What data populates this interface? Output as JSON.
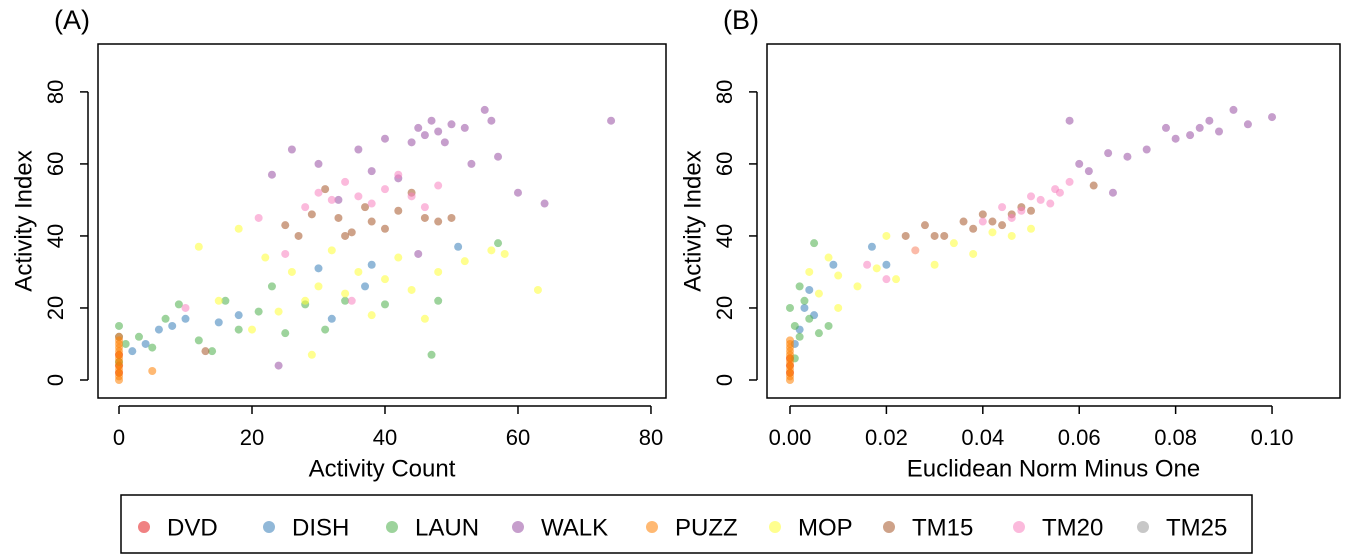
{
  "chart_data": [
    {
      "type": "scatter",
      "title": "(A)",
      "x_label": "Activity Count",
      "y_label": "Activity Index",
      "xlim": [
        -3.16,
        82.26
      ],
      "ylim": [
        -5,
        93.3
      ],
      "xticks": [
        0,
        20,
        40,
        60,
        80
      ],
      "yticks": [
        0,
        20,
        40,
        60,
        80
      ],
      "series": [
        {
          "name": "DVD",
          "color": "#e41a1c",
          "x": [
            0,
            0,
            0
          ],
          "values": [
            2,
            4,
            7
          ]
        },
        {
          "name": "DISH",
          "color": "#377eb8",
          "x": [
            0,
            2,
            4,
            6,
            8,
            10,
            15,
            18,
            30,
            32,
            38,
            51,
            37
          ],
          "values": [
            12,
            8,
            10,
            14,
            15,
            17,
            16,
            18,
            31,
            17,
            32,
            37,
            26
          ]
        },
        {
          "name": "LAUN",
          "color": "#4daf4a",
          "x": [
            0,
            1,
            3,
            5,
            7,
            9,
            12,
            14,
            16,
            18,
            21,
            23,
            25,
            28,
            31,
            34,
            40,
            47,
            48,
            57,
            0
          ],
          "values": [
            15,
            10,
            12,
            9,
            17,
            21,
            11,
            8,
            22,
            14,
            19,
            26,
            13,
            21,
            14,
            22,
            21,
            7,
            22,
            38,
            5
          ]
        },
        {
          "name": "WALK",
          "color": "#984ea3",
          "x": [
            23,
            26,
            30,
            33,
            36,
            38,
            40,
            42,
            44,
            45,
            46,
            47,
            48,
            49,
            50,
            52,
            53,
            55,
            56,
            57,
            60,
            64,
            74,
            45,
            24
          ],
          "values": [
            57,
            64,
            60,
            50,
            64,
            58,
            67,
            56,
            66,
            70,
            68,
            72,
            69,
            66,
            71,
            70,
            60,
            75,
            72,
            62,
            52,
            49,
            72,
            35,
            4
          ]
        },
        {
          "name": "PUZZ",
          "color": "#ff7f00",
          "x": [
            0,
            0,
            0,
            0,
            0,
            0,
            0,
            0,
            0,
            0,
            0,
            0,
            0,
            5
          ],
          "values": [
            0,
            1,
            2,
            3,
            4,
            5,
            6,
            7,
            8,
            9,
            10,
            11,
            12,
            2.5
          ]
        },
        {
          "name": "MOP",
          "color": "#ffff33",
          "x": [
            12,
            18,
            22,
            24,
            26,
            28,
            30,
            32,
            34,
            36,
            38,
            40,
            42,
            44,
            46,
            48,
            52,
            56,
            58,
            63,
            29,
            20,
            15
          ],
          "values": [
            37,
            42,
            34,
            19,
            30,
            22,
            26,
            36,
            24,
            30,
            18,
            28,
            34,
            25,
            17,
            30,
            33,
            36,
            35,
            25,
            7,
            14,
            22
          ]
        },
        {
          "name": "TM15",
          "color": "#a65628",
          "x": [
            25,
            27,
            29,
            31,
            33,
            35,
            37,
            38,
            40,
            42,
            44,
            46,
            48,
            50,
            34,
            13
          ],
          "values": [
            43,
            40,
            46,
            53,
            45,
            41,
            48,
            44,
            42,
            47,
            52,
            45,
            44,
            45,
            40,
            8
          ]
        },
        {
          "name": "TM20",
          "color": "#f781bf",
          "x": [
            21,
            25,
            28,
            30,
            32,
            34,
            36,
            38,
            40,
            42,
            44,
            46,
            48,
            35,
            10
          ],
          "values": [
            45,
            35,
            48,
            52,
            50,
            55,
            51,
            49,
            53,
            57,
            51,
            48,
            54,
            22,
            20
          ]
        },
        {
          "name": "TM25",
          "color": "#999999",
          "x": [],
          "values": []
        }
      ]
    },
    {
      "type": "scatter",
      "title": "(B)",
      "x_label": "Euclidean Norm Minus One",
      "y_label": "Activity Index",
      "xlim": [
        -0.00477,
        0.1141
      ],
      "ylim": [
        -5,
        93.3
      ],
      "xticks": [
        {
          "value": 0,
          "label": "0.00"
        },
        {
          "value": 0.02,
          "label": "0.02"
        },
        {
          "value": 0.04,
          "label": "0.04"
        },
        {
          "value": 0.06,
          "label": "0.06"
        },
        {
          "value": 0.08,
          "label": "0.08"
        },
        {
          "value": 0.1,
          "label": "0.10"
        }
      ],
      "yticks": [
        0,
        20,
        40,
        60,
        80
      ],
      "series": [
        {
          "x": [
            0,
            0,
            0
          ],
          "values": [
            2,
            4,
            6
          ]
        },
        {
          "x": [
            0.002,
            0.003,
            0.004,
            0.005,
            0.009,
            0.017,
            0.02,
            0.001
          ],
          "values": [
            14,
            20,
            25,
            18,
            32,
            37,
            32,
            10
          ]
        },
        {
          "x": [
            0,
            0.001,
            0.002,
            0.003,
            0.004,
            0.005,
            0.006,
            0.008,
            0.001,
            0.002
          ],
          "values": [
            20,
            15,
            12,
            22,
            17,
            38,
            13,
            15,
            6,
            26
          ]
        },
        {
          "x": [
            0.058,
            0.062,
            0.066,
            0.07,
            0.074,
            0.078,
            0.08,
            0.083,
            0.085,
            0.087,
            0.089,
            0.092,
            0.095,
            0.1,
            0.06,
            0.067
          ],
          "values": [
            72,
            58,
            63,
            62,
            64,
            70,
            67,
            68,
            70,
            72,
            69,
            75,
            71,
            73,
            60,
            52
          ]
        },
        {
          "x": [
            0,
            0,
            0,
            0,
            0,
            0,
            0,
            0,
            0,
            0,
            0,
            0
          ],
          "values": [
            0,
            1,
            2,
            3,
            4,
            5,
            6,
            7,
            8,
            9,
            10,
            11
          ]
        },
        {
          "x": [
            0.004,
            0.006,
            0.008,
            0.01,
            0.014,
            0.018,
            0.022,
            0.026,
            0.03,
            0.034,
            0.038,
            0.042,
            0.046,
            0.05,
            0.02,
            0.01
          ],
          "values": [
            30,
            24,
            34,
            29,
            26,
            31,
            28,
            36,
            32,
            38,
            35,
            41,
            40,
            42,
            40,
            20
          ]
        },
        {
          "x": [
            0.024,
            0.028,
            0.032,
            0.036,
            0.038,
            0.04,
            0.042,
            0.044,
            0.046,
            0.048,
            0.05,
            0.063,
            0.03
          ],
          "values": [
            40,
            43,
            40,
            44,
            42,
            46,
            44,
            43,
            46,
            48,
            47,
            54,
            40
          ]
        },
        {
          "x": [
            0.016,
            0.026,
            0.04,
            0.044,
            0.048,
            0.05,
            0.052,
            0.054,
            0.056,
            0.058,
            0.055,
            0.046,
            0.02
          ],
          "values": [
            32,
            36,
            44,
            48,
            47,
            51,
            50,
            49,
            52,
            55,
            53,
            45,
            28
          ]
        },
        {
          "x": [],
          "values": []
        }
      ]
    }
  ]
}
